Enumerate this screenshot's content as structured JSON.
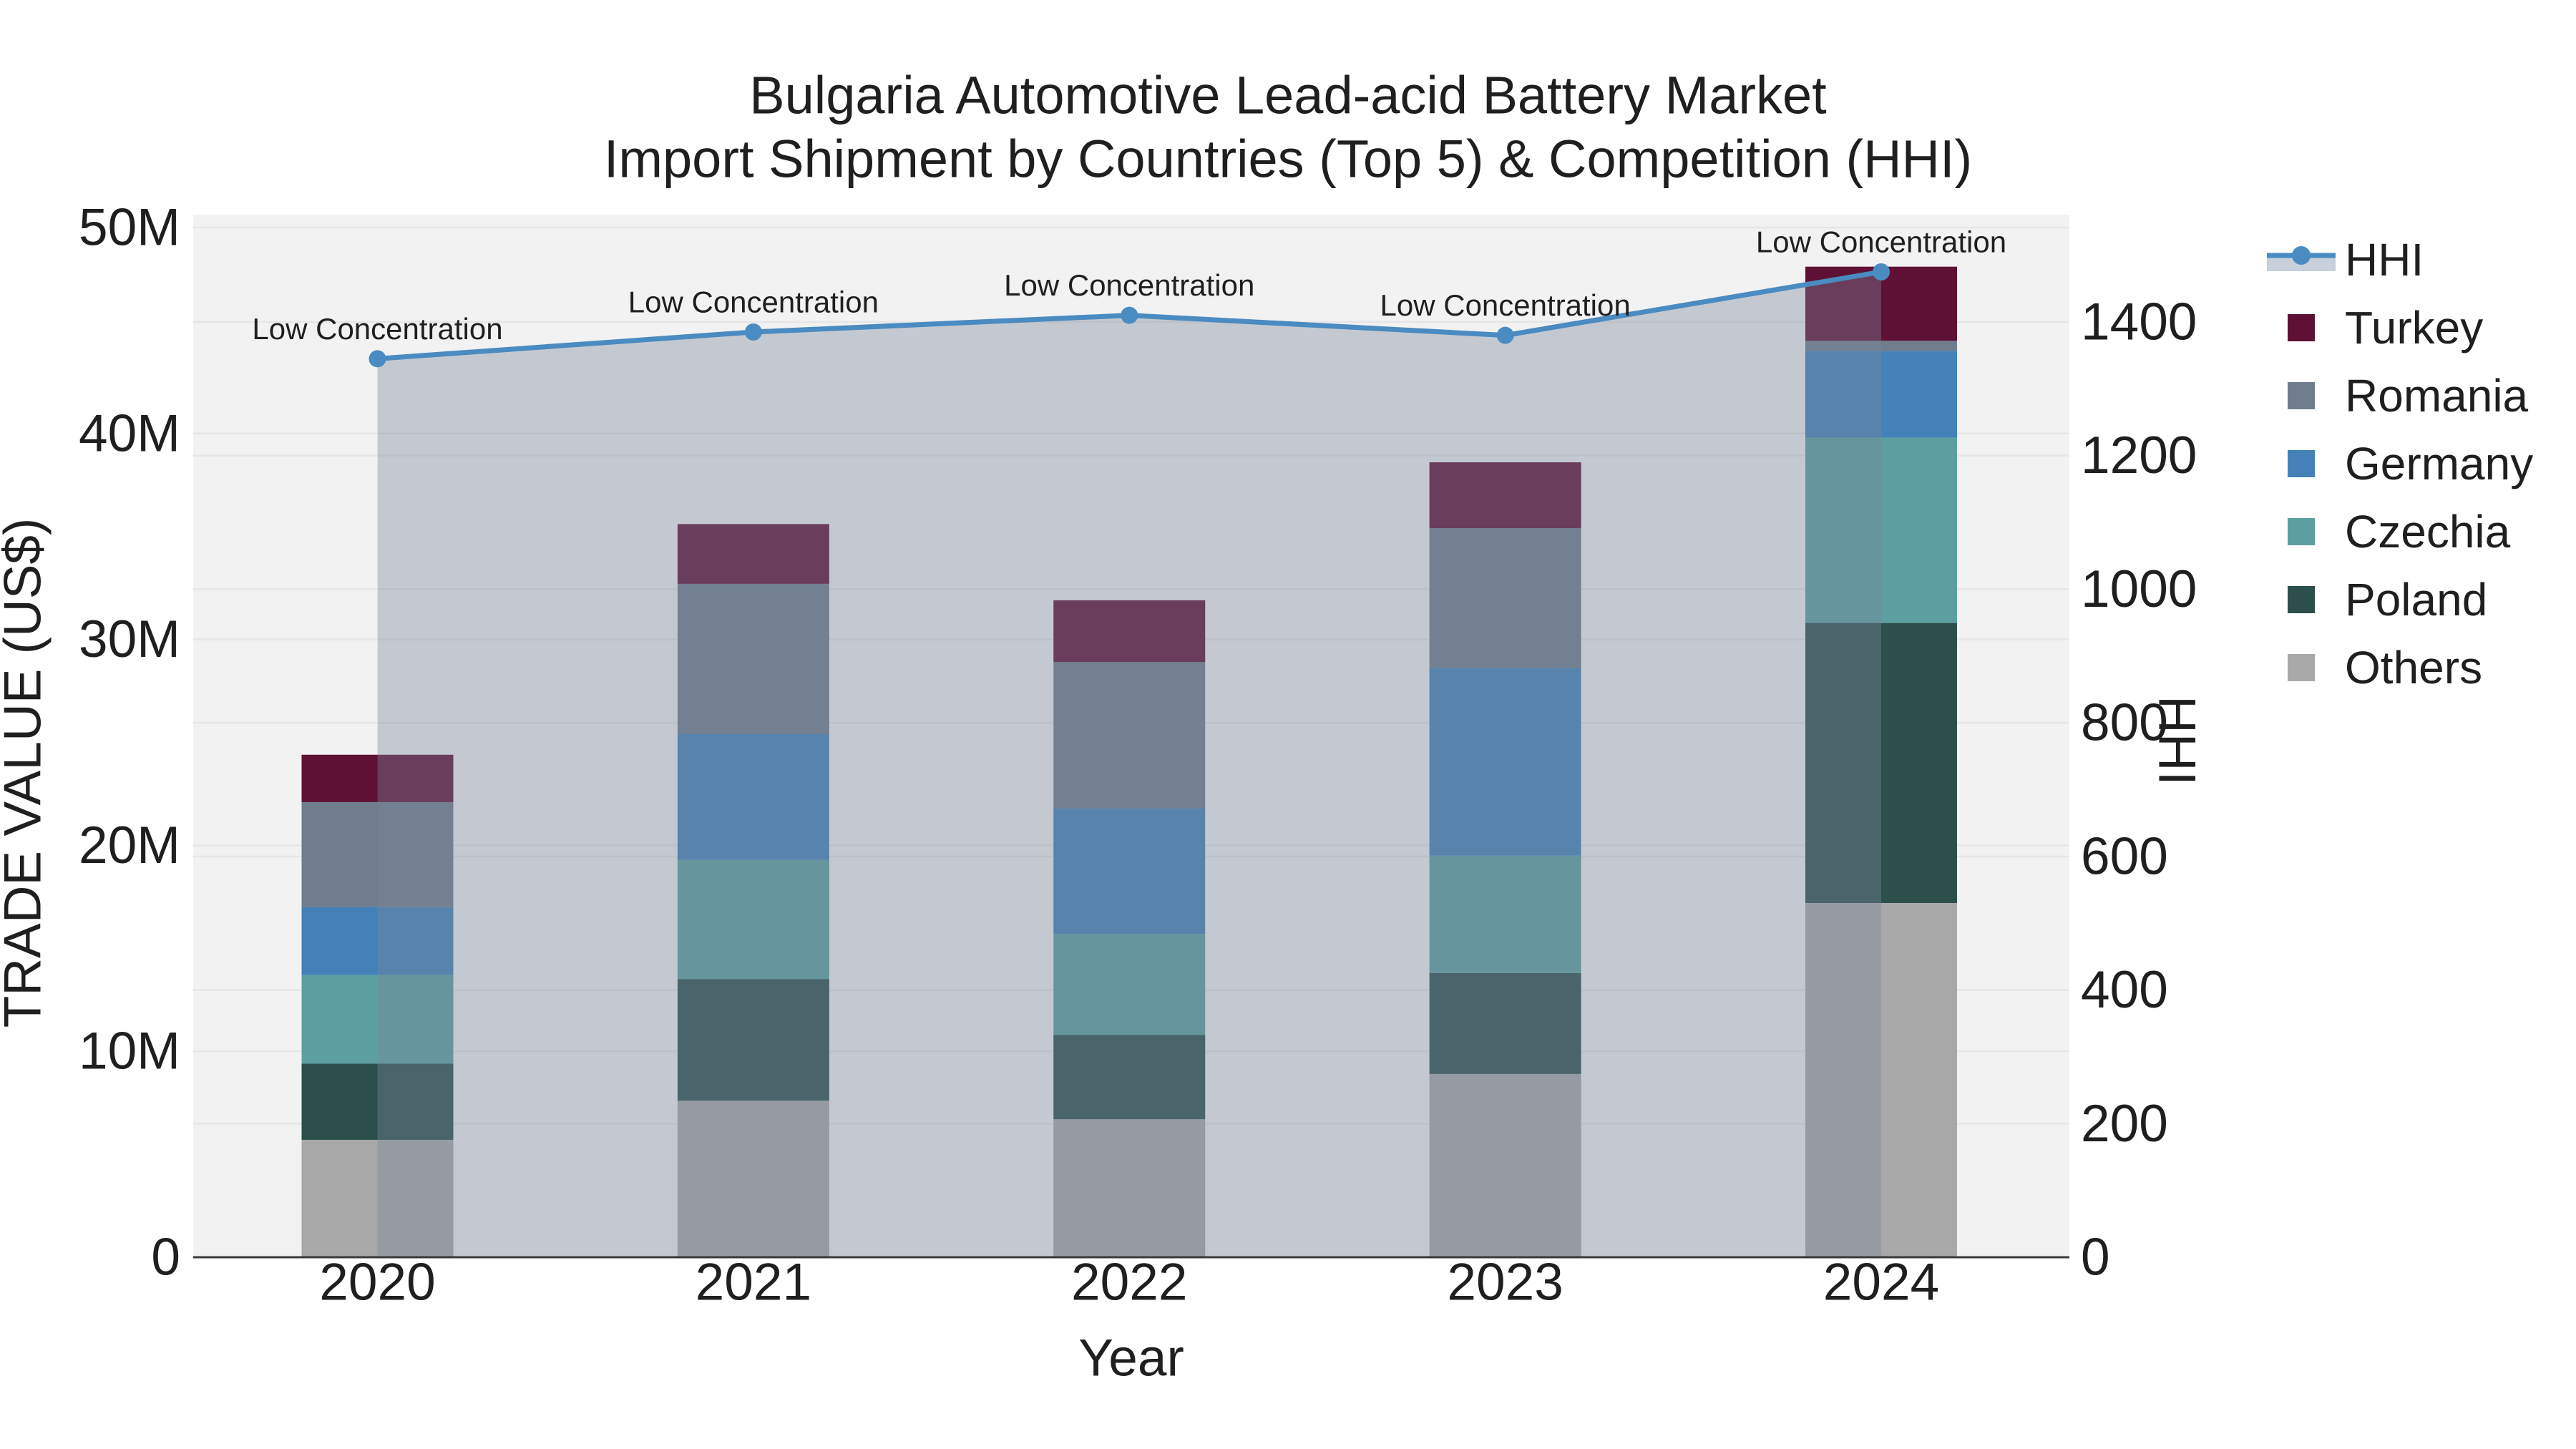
{
  "title": {
    "line1": "Bulgaria Automotive Lead-acid Battery Market",
    "line2": "Import Shipment by Countries (Top 5) & Competition (HHI)"
  },
  "colors": {
    "plot_background": "#f2f2f2",
    "gridline": "#e6e6e6",
    "axis_line": "#3a3a3a",
    "text": "#1f1f1f",
    "hhi_line": "#4a8bc1",
    "hhi_area_fill": "rgba(120,135,155,0.38)",
    "hhi_legend_band": "#c7d0db"
  },
  "chart_data": {
    "type": "combo: stacked bar + line",
    "categories": [
      "2020",
      "2021",
      "2022",
      "2023",
      "2024"
    ],
    "unit": "US$ millions (trade value), HHI index (line)",
    "bar_series": [
      {
        "name": "Turkey",
        "color": "#5f1135",
        "values": [
          2.3,
          2.9,
          3.0,
          3.2,
          3.6
        ]
      },
      {
        "name": "Romania",
        "color": "#6f7d8c",
        "values": [
          5.1,
          7.3,
          7.1,
          6.8,
          0.5
        ]
      },
      {
        "name": "Germany",
        "color": "#4381b8",
        "values": [
          3.3,
          6.1,
          6.1,
          9.1,
          4.2
        ]
      },
      {
        "name": "Czechia",
        "color": "#5d9fa0",
        "values": [
          4.3,
          5.8,
          4.9,
          5.7,
          9.0
        ]
      },
      {
        "name": "Poland",
        "color": "#2c4f4c",
        "values": [
          3.7,
          5.9,
          4.1,
          4.9,
          13.6
        ]
      },
      {
        "name": "Others",
        "color": "#a8a8a8",
        "values": [
          5.7,
          7.6,
          6.7,
          8.9,
          17.2
        ]
      }
    ],
    "bar_totals_millions": [
      24.4,
      35.6,
      31.9,
      38.6,
      48.1
    ],
    "line_series": {
      "name": "HHI",
      "color": "#4a8bc1",
      "fill": "tozero",
      "values": [
        1345,
        1385,
        1410,
        1380,
        1475
      ],
      "point_annotations": [
        "Low Concentration",
        "Low Concentration",
        "Low Concentration",
        "Low Concentration",
        "Low Concentration"
      ]
    },
    "y_left": {
      "title": "TRADE VALUE (US$)",
      "tick_labels": [
        "0",
        "10M",
        "20M",
        "30M",
        "40M",
        "50M"
      ],
      "tick_values_millions": [
        0,
        10,
        20,
        30,
        40,
        50
      ],
      "range_millions": [
        0,
        50.6
      ]
    },
    "y_right": {
      "title": "HHI",
      "tick_labels": [
        "0",
        "200",
        "400",
        "600",
        "800",
        "1000",
        "1200",
        "1400"
      ],
      "tick_values": [
        0,
        200,
        400,
        600,
        800,
        1000,
        1200,
        1400
      ],
      "range": [
        0,
        1400
      ]
    },
    "x": {
      "title": "Year"
    },
    "legend_position": "right",
    "grid": "both y axes, horizontal lines"
  },
  "legend": {
    "items": [
      {
        "label": "HHI",
        "type": "line"
      },
      {
        "label": "Turkey",
        "type": "bar",
        "color": "#5f1135"
      },
      {
        "label": "Romania",
        "type": "bar",
        "color": "#6f7d8c"
      },
      {
        "label": "Germany",
        "type": "bar",
        "color": "#4381b8"
      },
      {
        "label": "Czechia",
        "type": "bar",
        "color": "#5d9fa0"
      },
      {
        "label": "Poland",
        "type": "bar",
        "color": "#2c4f4c"
      },
      {
        "label": "Others",
        "type": "bar",
        "color": "#a8a8a8"
      }
    ]
  }
}
